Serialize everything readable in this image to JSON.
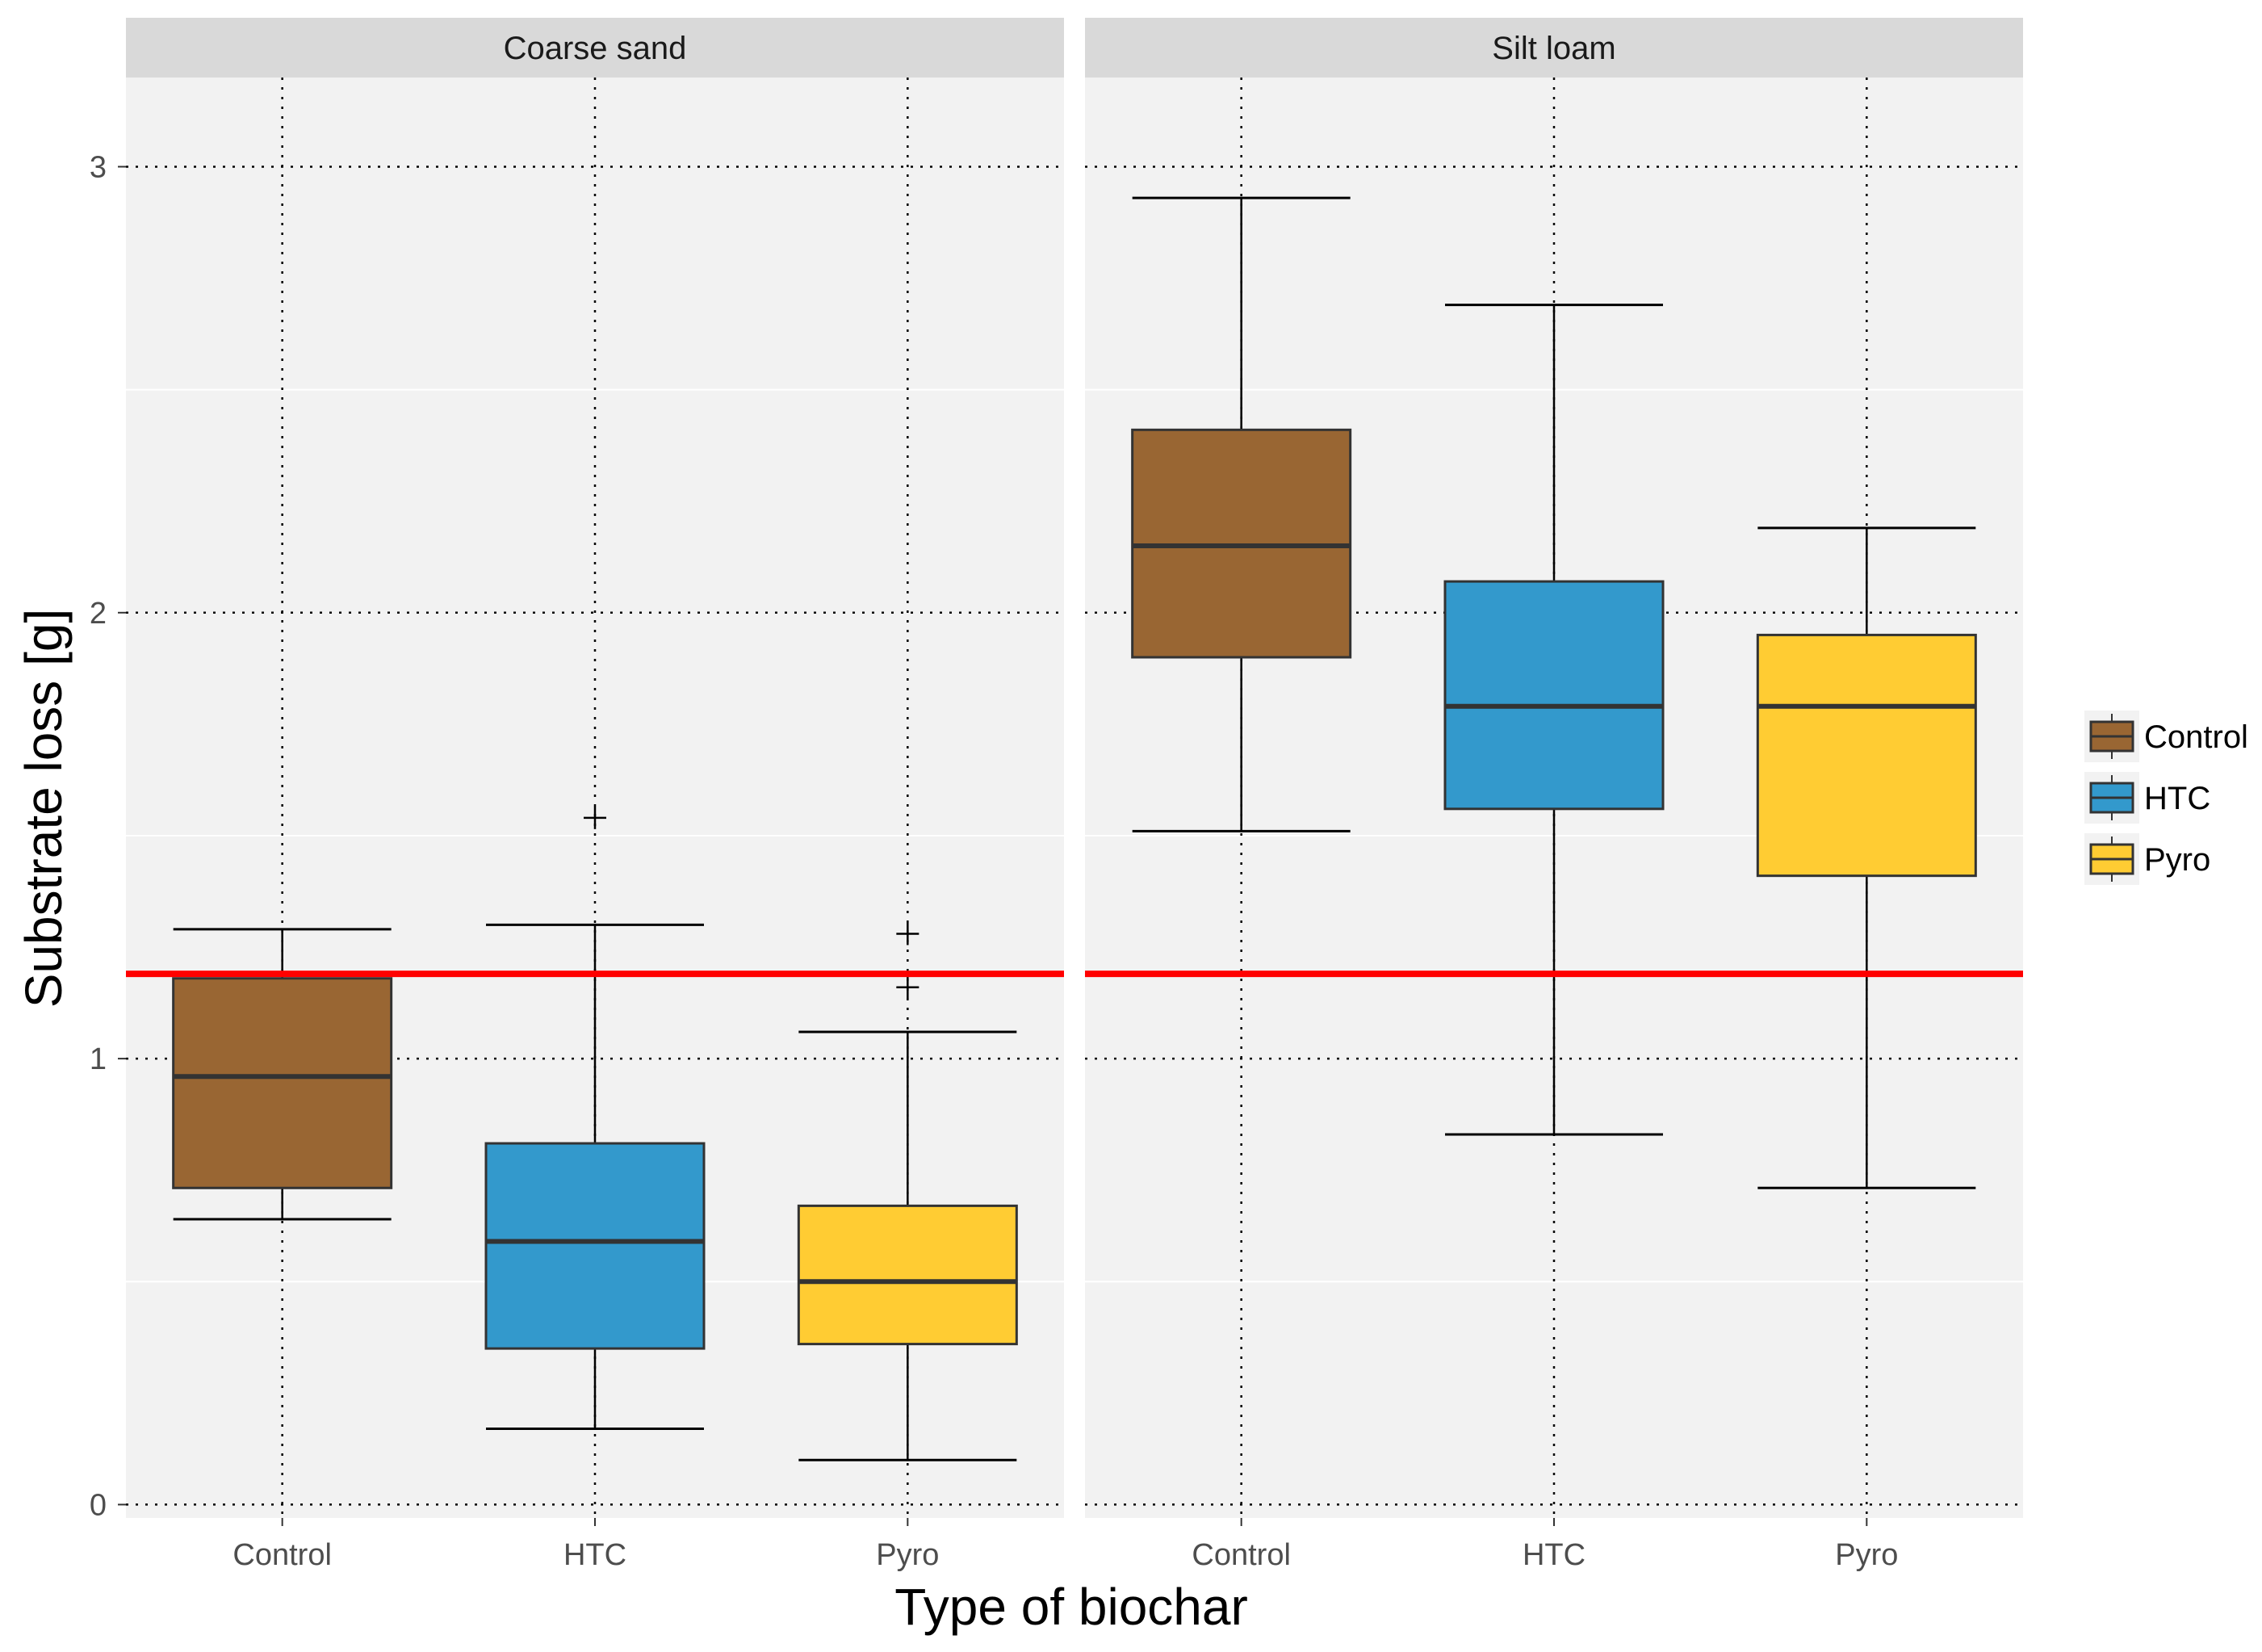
{
  "chart_data": {
    "type": "boxplot",
    "xlabel": "Type of biochar",
    "ylabel": "Substrate loss [g]",
    "ylim": [
      -0.03,
      3.2
    ],
    "yticks": [
      0,
      1,
      2,
      3
    ],
    "categories": [
      "Control",
      "HTC",
      "Pyro"
    ],
    "reference_line": {
      "y": 1.19,
      "color": "#ff0000"
    },
    "colors": {
      "Control": "#996633",
      "HTC": "#3399cc",
      "Pyro": "#ffcc33"
    },
    "legend": {
      "position": "right",
      "entries": [
        "Control",
        "HTC",
        "Pyro"
      ]
    },
    "panels": [
      {
        "title": "Coarse sand",
        "boxes": [
          {
            "category": "Control",
            "whisker_low": 0.64,
            "q1": 0.71,
            "median": 0.96,
            "q3": 1.18,
            "whisker_high": 1.29,
            "outliers": []
          },
          {
            "category": "HTC",
            "whisker_low": 0.17,
            "q1": 0.35,
            "median": 0.59,
            "q3": 0.81,
            "whisker_high": 1.3,
            "outliers": [
              1.54
            ]
          },
          {
            "category": "Pyro",
            "whisker_low": 0.1,
            "q1": 0.36,
            "median": 0.5,
            "q3": 0.67,
            "whisker_high": 1.06,
            "outliers": [
              1.16,
              1.28
            ]
          }
        ]
      },
      {
        "title": "Silt loam",
        "boxes": [
          {
            "category": "Control",
            "whisker_low": 1.51,
            "q1": 1.9,
            "median": 2.15,
            "q3": 2.41,
            "whisker_high": 2.93,
            "outliers": []
          },
          {
            "category": "HTC",
            "whisker_low": 0.83,
            "q1": 1.56,
            "median": 1.79,
            "q3": 2.07,
            "whisker_high": 2.69,
            "outliers": []
          },
          {
            "category": "Pyro",
            "whisker_low": 0.71,
            "q1": 1.41,
            "median": 1.79,
            "q3": 1.95,
            "whisker_high": 2.19,
            "outliers": []
          }
        ]
      }
    ]
  }
}
